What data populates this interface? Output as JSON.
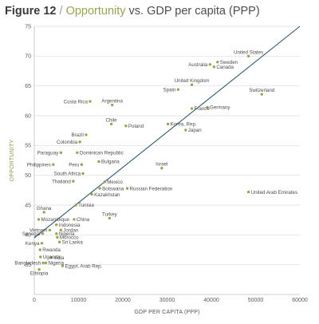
{
  "header": {
    "figure": "Figure 12",
    "slash": " / ",
    "opportunity": "Opportunity",
    "rest": " vs. GDP per capita (PPP)"
  },
  "chart_data": {
    "type": "scatter",
    "title": "Figure 12 / Opportunity vs. GDP per capita (PPP)",
    "xlabel": "GDP PER CAPITA (PPP)",
    "ylabel": "OPPORTUNITY",
    "xlim": [
      0,
      60000
    ],
    "ylim": [
      30,
      75
    ],
    "xticks": [
      0,
      10000,
      20000,
      30000,
      40000,
      50000,
      60000
    ],
    "yticks": [
      35,
      40,
      45,
      50,
      55,
      60,
      65,
      70,
      75
    ],
    "grid": "horizontal",
    "colors": {
      "point": "#9aa44a",
      "trend": "#27586e",
      "grid": "#dcdcdc"
    },
    "trendline": {
      "x": [
        0,
        60000
      ],
      "y": [
        39.5,
        75
      ]
    },
    "points": [
      {
        "label": "United States",
        "x": 48400,
        "y": 70.0
      },
      {
        "label": "Sweden",
        "x": 41400,
        "y": 69.0
      },
      {
        "label": "Australia",
        "x": 39700,
        "y": 68.6
      },
      {
        "label": "Canada",
        "x": 40600,
        "y": 68.2
      },
      {
        "label": "Switzerland",
        "x": 51400,
        "y": 63.6
      },
      {
        "label": "United Kingdom",
        "x": 35600,
        "y": 65.2
      },
      {
        "label": "Spain",
        "x": 32500,
        "y": 64.4
      },
      {
        "label": "France",
        "x": 35600,
        "y": 61.2
      },
      {
        "label": "Germany",
        "x": 39100,
        "y": 61.4
      },
      {
        "label": "Costa Rica",
        "x": 12600,
        "y": 62.4
      },
      {
        "label": "Argentina",
        "x": 17600,
        "y": 61.8
      },
      {
        "label": "Korea, Rep.",
        "x": 30200,
        "y": 58.6
      },
      {
        "label": "Japan",
        "x": 34200,
        "y": 57.6
      },
      {
        "label": "Chile",
        "x": 17400,
        "y": 58.6
      },
      {
        "label": "Poland",
        "x": 20700,
        "y": 58.3
      },
      {
        "label": "Brazil",
        "x": 11700,
        "y": 56.8
      },
      {
        "label": "Colombia",
        "x": 10300,
        "y": 55.6
      },
      {
        "label": "Paraguay",
        "x": 6000,
        "y": 53.8
      },
      {
        "label": "Dominican Republic",
        "x": 9700,
        "y": 53.8
      },
      {
        "label": "Philippines",
        "x": 4300,
        "y": 51.8
      },
      {
        "label": "Peru",
        "x": 10700,
        "y": 51.8
      },
      {
        "label": "Bulgaria",
        "x": 14600,
        "y": 52.3
      },
      {
        "label": "Israel",
        "x": 28800,
        "y": 51.2
      },
      {
        "label": "South Africa",
        "x": 11000,
        "y": 50.3
      },
      {
        "label": "Thailand",
        "x": 8800,
        "y": 49.0
      },
      {
        "label": "Mexico",
        "x": 15900,
        "y": 48.9
      },
      {
        "label": "Botswana",
        "x": 14800,
        "y": 47.8
      },
      {
        "label": "Kazakhstan",
        "x": 13000,
        "y": 46.8
      },
      {
        "label": "Russian Federation",
        "x": 21000,
        "y": 47.8
      },
      {
        "label": "United Arab Emirates",
        "x": 48400,
        "y": 47.2
      },
      {
        "label": "Tunisia",
        "x": 9400,
        "y": 45.0
      },
      {
        "label": "Ghana",
        "x": 2200,
        "y": 43.8
      },
      {
        "label": "Turkey",
        "x": 17000,
        "y": 42.8
      },
      {
        "label": "Mozambique",
        "x": 1000,
        "y": 42.6
      },
      {
        "label": "China",
        "x": 9000,
        "y": 42.6
      },
      {
        "label": "Indonesia",
        "x": 5000,
        "y": 41.7
      },
      {
        "label": "Vietnam",
        "x": 3500,
        "y": 40.8
      },
      {
        "label": "Jordan",
        "x": 6000,
        "y": 40.8
      },
      {
        "label": "Senegal",
        "x": 1900,
        "y": 40.2
      },
      {
        "label": "Nigeria",
        "x": 5000,
        "y": 40.2
      },
      {
        "label": "Morocco",
        "x": 5200,
        "y": 39.6
      },
      {
        "label": "Sri Lanka",
        "x": 5700,
        "y": 38.8
      },
      {
        "label": "Kenya",
        "x": 1700,
        "y": 38.6
      },
      {
        "label": "Rwanda",
        "x": 1300,
        "y": 37.5
      },
      {
        "label": "Uganda",
        "x": 1400,
        "y": 36.3
      },
      {
        "label": "India",
        "x": 3800,
        "y": 36.2
      },
      {
        "label": "Bangladesh",
        "x": 2000,
        "y": 35.3
      },
      {
        "label": "Nigeria",
        "x": 2600,
        "y": 35.3
      },
      {
        "label": "Egypt, Arab Rep.",
        "x": 6400,
        "y": 34.8
      },
      {
        "label": "Ethiopia",
        "x": 1100,
        "y": 34.2
      }
    ]
  }
}
